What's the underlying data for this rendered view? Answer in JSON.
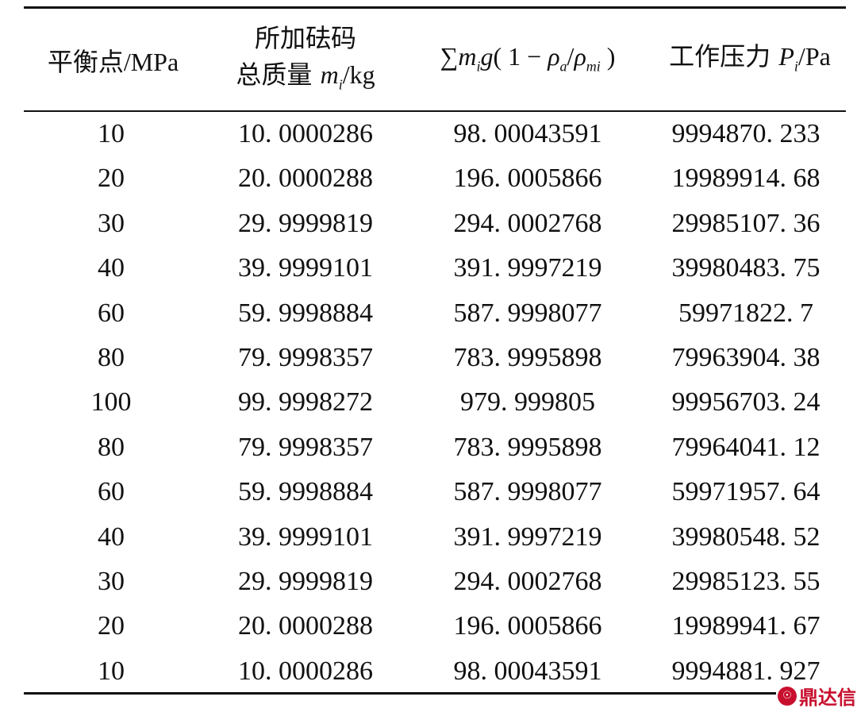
{
  "table": {
    "headers": [
      {
        "text": "平衡点",
        "unit": "/MPa"
      },
      {
        "line1": "所加砝码",
        "line2": "总质量",
        "var": "m",
        "sub": "i",
        "unit": "/kg"
      },
      {
        "prefix": "∑",
        "var": "m",
        "sub": "i",
        "g": "g",
        "open": "( 1 − ",
        "rho": "ρ",
        "sub_a": "a",
        "slash": "/",
        "sub_mi": "mi",
        "close": " )"
      },
      {
        "text": "工作压力 ",
        "var": "P",
        "sub": "i",
        "unit": "/Pa"
      }
    ],
    "rows": [
      [
        "10",
        "10. 0000286",
        "98. 00043591",
        "9994870. 233"
      ],
      [
        "20",
        "20. 0000288",
        "196. 0005866",
        "19989914. 68"
      ],
      [
        "30",
        "29. 9999819",
        "294. 0002768",
        "29985107. 36"
      ],
      [
        "40",
        "39. 9999101",
        "391. 9997219",
        "39980483. 75"
      ],
      [
        "60",
        "59. 9998884",
        "587. 9998077",
        "59971822. 7"
      ],
      [
        "80",
        "79. 9998357",
        "783. 9995898",
        "79963904. 38"
      ],
      [
        "100",
        "99. 9998272",
        "979. 999805",
        "99956703. 24"
      ],
      [
        "80",
        "79. 9998357",
        "783. 9995898",
        "79964041. 12"
      ],
      [
        "60",
        "59. 9998884",
        "587. 9998077",
        "59971957. 64"
      ],
      [
        "40",
        "39. 9999101",
        "391. 9997219",
        "39980548. 52"
      ],
      [
        "30",
        "29. 9999819",
        "294. 0002768",
        "29985123. 55"
      ],
      [
        "20",
        "20. 0000288",
        "196. 0005866",
        "19989941. 67"
      ],
      [
        "10",
        "10. 0000286",
        "98. 00043591",
        "9994881. 927"
      ]
    ]
  },
  "watermark": {
    "text": "鼎达信",
    "color": "#c8102e"
  }
}
